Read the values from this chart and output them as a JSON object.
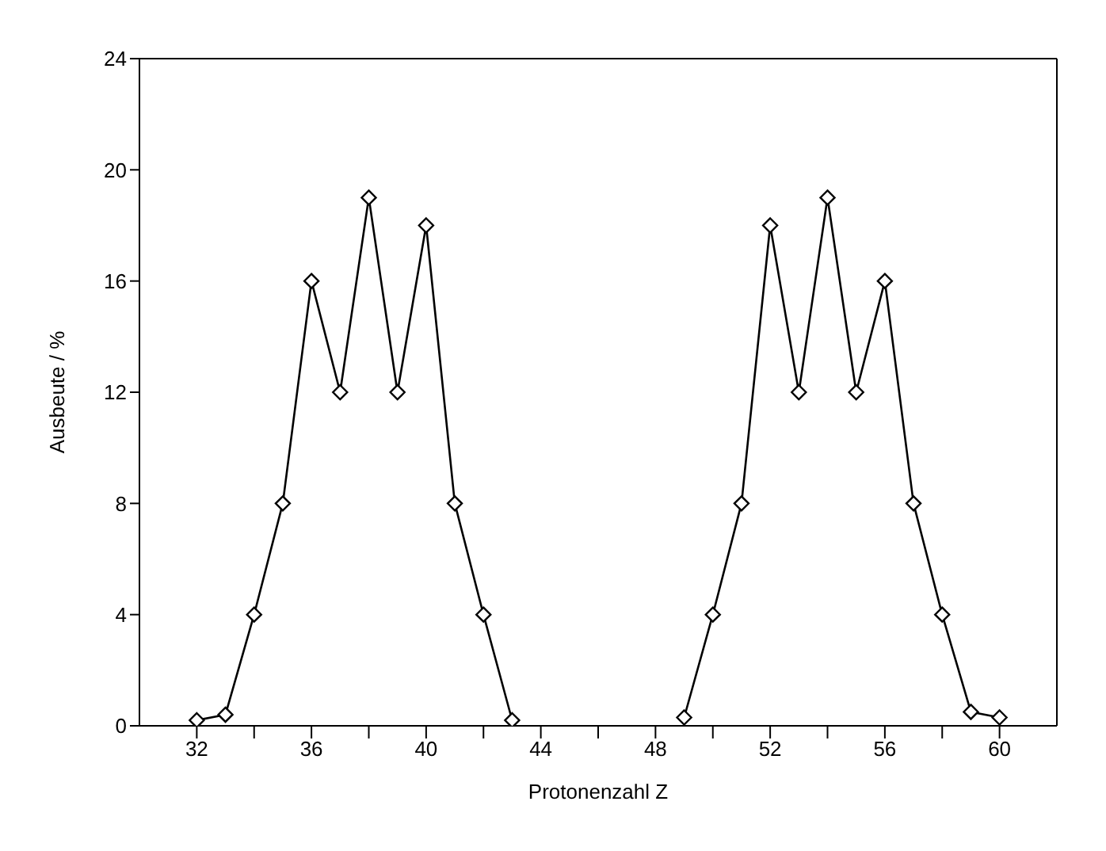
{
  "chart_data": {
    "type": "line",
    "xlabel": "Protonenzahl Z",
    "ylabel": "Ausbeute / %",
    "x": [
      32,
      33,
      34,
      35,
      36,
      37,
      38,
      39,
      40,
      41,
      42,
      43,
      44,
      45,
      46,
      47,
      48,
      49,
      50,
      51,
      52,
      53,
      54,
      55,
      56,
      57,
      58,
      59,
      60
    ],
    "series": [
      {
        "color": "#000000",
        "values": [
          0.2,
          0.4,
          4,
          8,
          16,
          12,
          19,
          12,
          18,
          8,
          4,
          0.2,
          null,
          null,
          null,
          null,
          null,
          0.3,
          4,
          8,
          18,
          12,
          19,
          12,
          16,
          8,
          4,
          0.5,
          0.3
        ]
      }
    ],
    "xlim": [
      30,
      62
    ],
    "xticks": [
      32,
      {
        "value": 34,
        "label": null
      },
      36,
      {
        "value": 38,
        "label": null
      },
      40,
      {
        "value": 42,
        "label": null
      },
      44,
      {
        "value": 46,
        "label": null
      },
      48,
      {
        "value": 50,
        "label": null
      },
      52,
      {
        "value": 54,
        "label": null
      },
      56,
      {
        "value": 58,
        "label": null
      },
      60
    ],
    "ylim": [
      0,
      24
    ],
    "yticks": [
      0,
      4,
      8,
      12,
      16,
      20,
      24
    ],
    "grid": false,
    "legend": false,
    "marker": "diamond",
    "line_style": "solid"
  }
}
